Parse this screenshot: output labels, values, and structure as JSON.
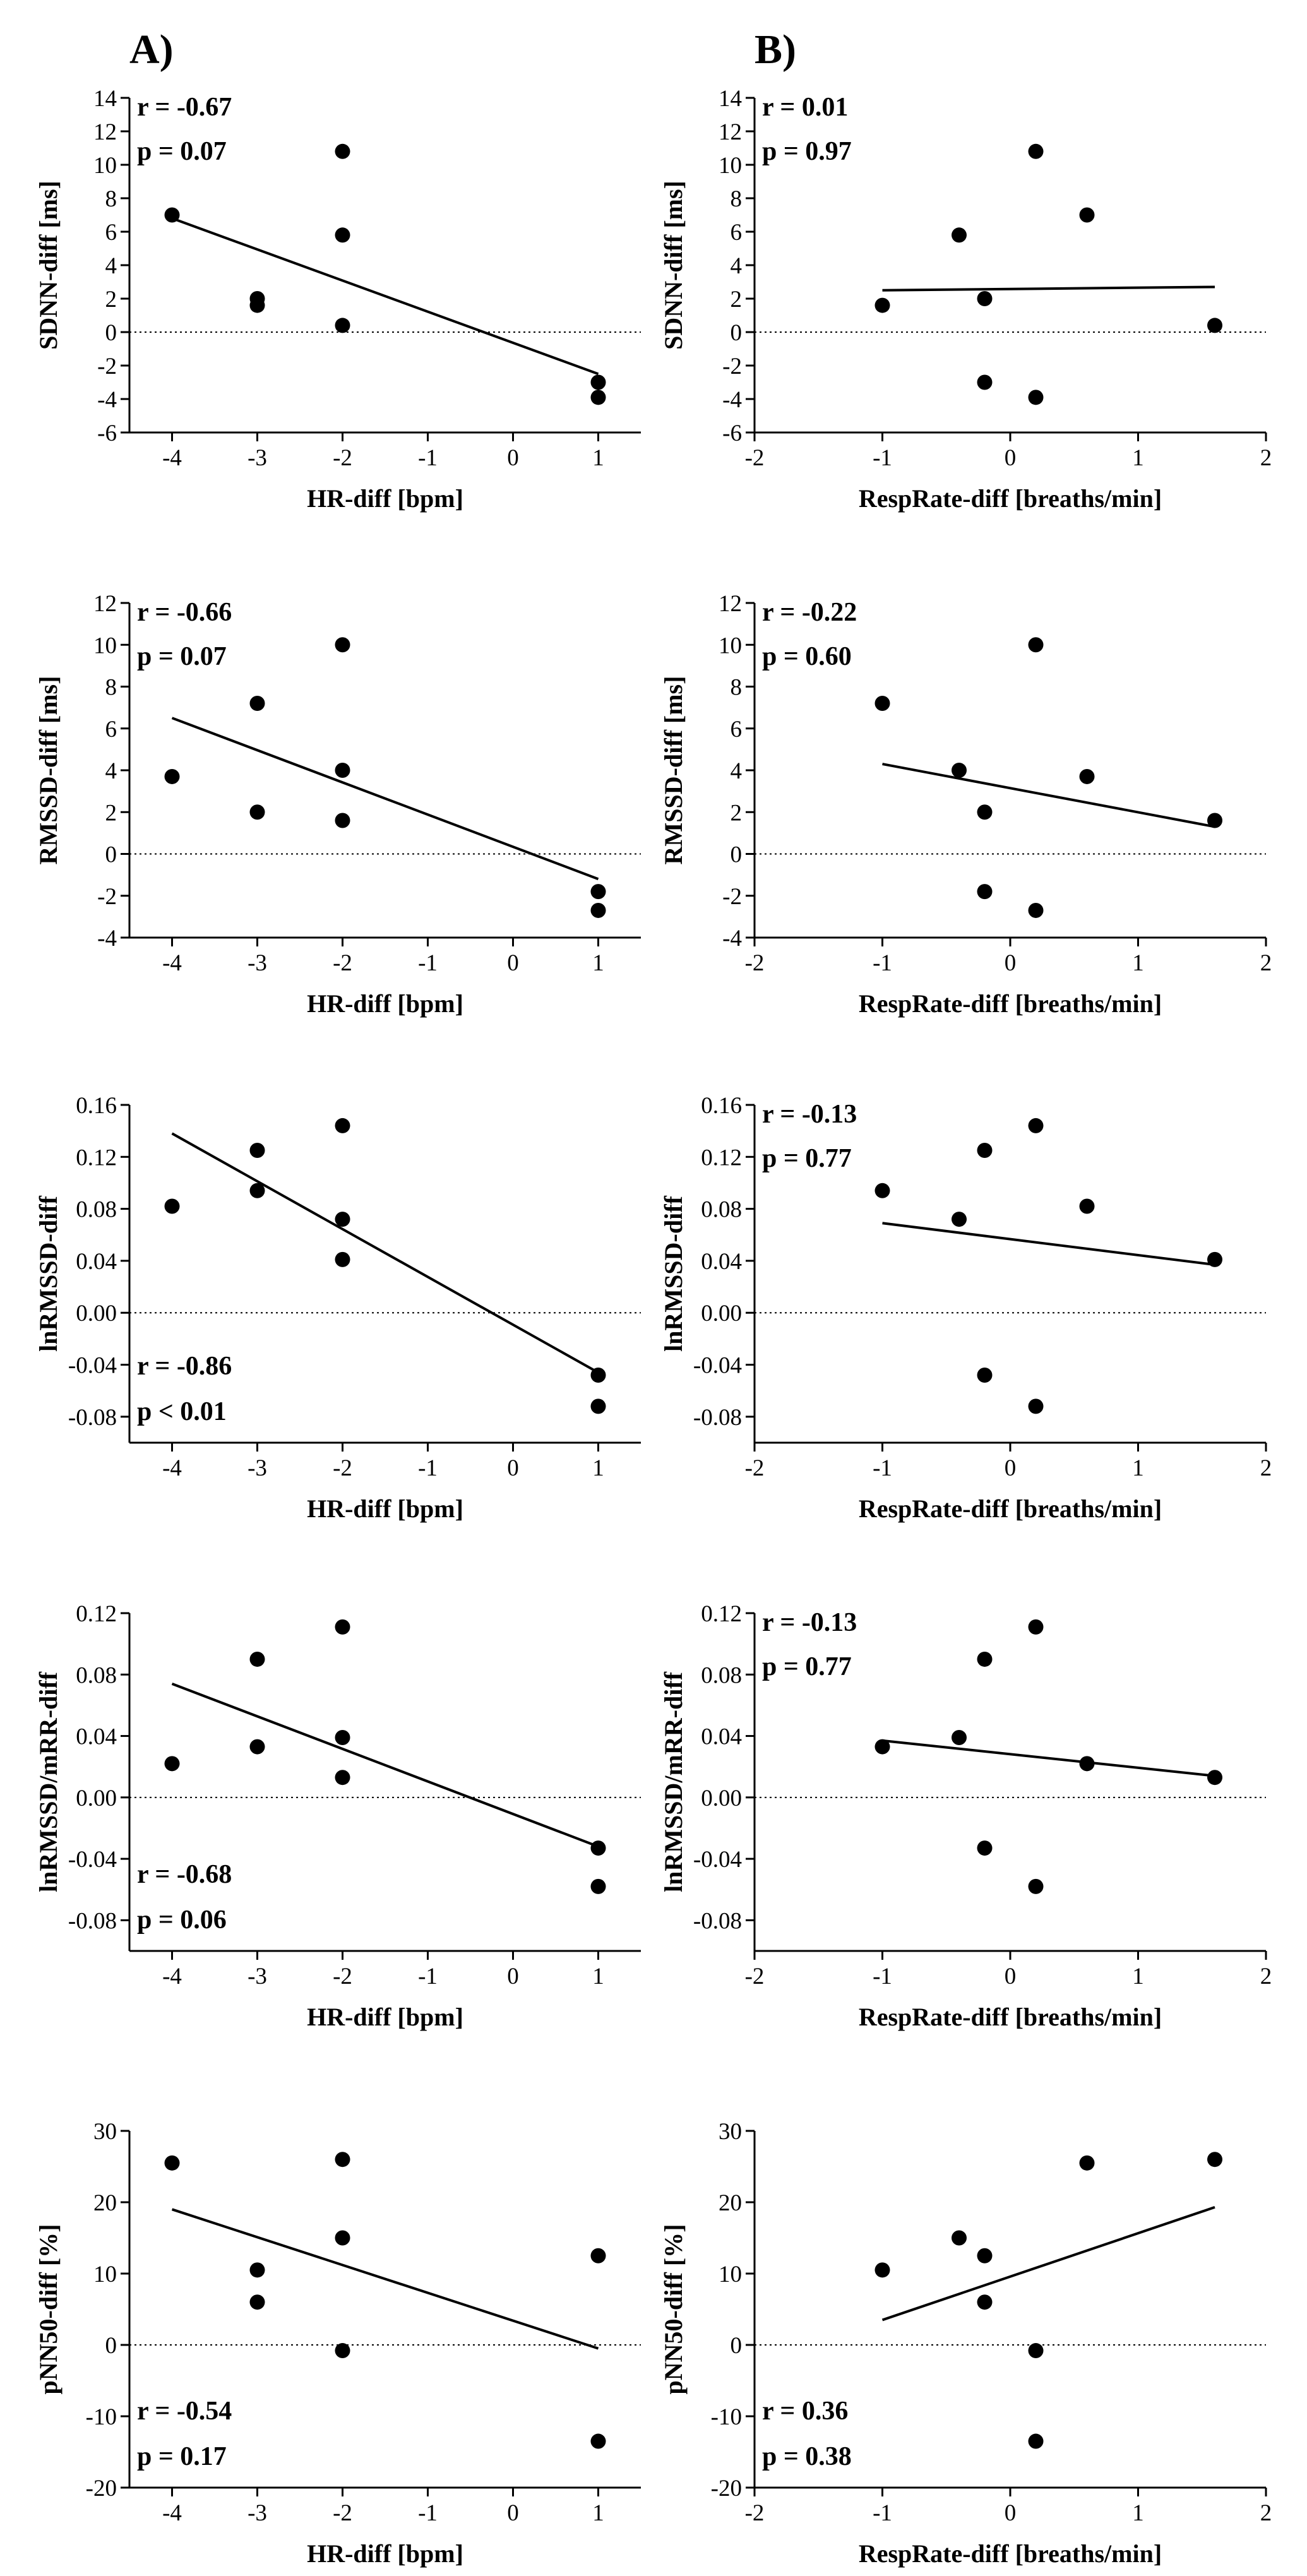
{
  "figure": {
    "panel_labels": [
      "A)",
      "B)"
    ]
  },
  "chart_data": [
    {
      "type": "scatter",
      "col": 0,
      "row": 0,
      "xlabel": "HR-diff [bpm]",
      "ylabel": "SDNN-diff [ms]",
      "xlim": [
        -4.5,
        1.5
      ],
      "ylim": [
        -6,
        14
      ],
      "xticks": [
        -4,
        -3,
        -2,
        -1,
        0,
        1
      ],
      "yticks": [
        -6,
        -4,
        -2,
        0,
        2,
        4,
        6,
        8,
        10,
        12,
        14
      ],
      "y_decimals": 0,
      "points": [
        [
          -4,
          7.0
        ],
        [
          -3,
          2.0
        ],
        [
          -3,
          1.6
        ],
        [
          -2,
          10.8
        ],
        [
          -2,
          5.8
        ],
        [
          -2,
          0.4
        ],
        [
          1,
          -3.0
        ],
        [
          1,
          -3.9
        ]
      ],
      "fit": [
        [
          -4,
          6.8
        ],
        [
          1,
          -2.5
        ]
      ],
      "stats": {
        "r": "r = -0.67",
        "p": "p = 0.07",
        "position": "top-left"
      }
    },
    {
      "type": "scatter",
      "col": 1,
      "row": 0,
      "xlabel": "RespRate-diff [breaths/min]",
      "ylabel": "SDNN-diff [ms]",
      "xlim": [
        -2,
        2
      ],
      "ylim": [
        -6,
        14
      ],
      "xticks": [
        -2,
        -1,
        0,
        1,
        2
      ],
      "yticks": [
        -6,
        -4,
        -2,
        0,
        2,
        4,
        6,
        8,
        10,
        12,
        14
      ],
      "y_decimals": 0,
      "points": [
        [
          -1.0,
          1.6
        ],
        [
          -0.4,
          5.8
        ],
        [
          -0.2,
          2.0
        ],
        [
          -0.2,
          -3.0
        ],
        [
          0.2,
          10.8
        ],
        [
          0.2,
          -3.9
        ],
        [
          0.6,
          7.0
        ],
        [
          1.6,
          0.4
        ]
      ],
      "fit": [
        [
          -1,
          2.5
        ],
        [
          1.6,
          2.7
        ]
      ],
      "stats": {
        "r": "r = 0.01",
        "p": "p = 0.97",
        "position": "top-left"
      }
    },
    {
      "type": "scatter",
      "col": 0,
      "row": 1,
      "xlabel": "HR-diff [bpm]",
      "ylabel": "RMSSD-diff [ms]",
      "xlim": [
        -4.5,
        1.5
      ],
      "ylim": [
        -4,
        12
      ],
      "xticks": [
        -4,
        -3,
        -2,
        -1,
        0,
        1
      ],
      "yticks": [
        -4,
        -2,
        0,
        2,
        4,
        6,
        8,
        10,
        12
      ],
      "y_decimals": 0,
      "points": [
        [
          -4,
          3.7
        ],
        [
          -3,
          7.2
        ],
        [
          -3,
          2.0
        ],
        [
          -2,
          10.0
        ],
        [
          -2,
          4.0
        ],
        [
          -2,
          1.6
        ],
        [
          1,
          -1.8
        ],
        [
          1,
          -2.7
        ]
      ],
      "fit": [
        [
          -4,
          6.5
        ],
        [
          1,
          -1.2
        ]
      ],
      "stats": {
        "r": "r = -0.66",
        "p": "p = 0.07",
        "position": "top-left"
      }
    },
    {
      "type": "scatter",
      "col": 1,
      "row": 1,
      "xlabel": "RespRate-diff [breaths/min]",
      "ylabel": "RMSSD-diff [ms]",
      "xlim": [
        -2,
        2
      ],
      "ylim": [
        -4,
        12
      ],
      "xticks": [
        -2,
        -1,
        0,
        1,
        2
      ],
      "yticks": [
        -4,
        -2,
        0,
        2,
        4,
        6,
        8,
        10,
        12
      ],
      "y_decimals": 0,
      "points": [
        [
          -1.0,
          7.2
        ],
        [
          -0.4,
          4.0
        ],
        [
          -0.2,
          2.0
        ],
        [
          -0.2,
          -1.8
        ],
        [
          0.2,
          10.0
        ],
        [
          0.2,
          -2.7
        ],
        [
          0.6,
          3.7
        ],
        [
          1.6,
          1.6
        ]
      ],
      "fit": [
        [
          -1,
          4.3
        ],
        [
          1.6,
          1.3
        ]
      ],
      "stats": {
        "r": "r = -0.22",
        "p": "p = 0.60",
        "position": "top-left"
      }
    },
    {
      "type": "scatter",
      "col": 0,
      "row": 2,
      "xlabel": "HR-diff [bpm]",
      "ylabel": "lnRMSSD-diff",
      "xlim": [
        -4.5,
        1.5
      ],
      "ylim": [
        -0.1,
        0.16
      ],
      "xticks": [
        -4,
        -3,
        -2,
        -1,
        0,
        1
      ],
      "yticks": [
        -0.08,
        -0.04,
        0.0,
        0.04,
        0.08,
        0.12,
        0.16
      ],
      "y_decimals": 2,
      "points": [
        [
          -4,
          0.082
        ],
        [
          -3,
          0.125
        ],
        [
          -3,
          0.094
        ],
        [
          -2,
          0.144
        ],
        [
          -2,
          0.072
        ],
        [
          -2,
          0.041
        ],
        [
          1,
          -0.048
        ],
        [
          1,
          -0.072
        ]
      ],
      "fit": [
        [
          -4,
          0.138
        ],
        [
          1,
          -0.046
        ]
      ],
      "stats": {
        "r": "r = -0.86",
        "p": "p < 0.01",
        "position": "bottom-left"
      }
    },
    {
      "type": "scatter",
      "col": 1,
      "row": 2,
      "xlabel": "RespRate-diff [breaths/min]",
      "ylabel": "lnRMSSD-diff",
      "xlim": [
        -2,
        2
      ],
      "ylim": [
        -0.1,
        0.16
      ],
      "xticks": [
        -2,
        -1,
        0,
        1,
        2
      ],
      "yticks": [
        -0.08,
        -0.04,
        0.0,
        0.04,
        0.08,
        0.12,
        0.16
      ],
      "y_decimals": 2,
      "points": [
        [
          -1.0,
          0.094
        ],
        [
          -0.4,
          0.072
        ],
        [
          -0.2,
          0.125
        ],
        [
          -0.2,
          -0.048
        ],
        [
          0.2,
          0.144
        ],
        [
          0.2,
          -0.072
        ],
        [
          0.6,
          0.082
        ],
        [
          1.6,
          0.041
        ]
      ],
      "fit": [
        [
          -1,
          0.069
        ],
        [
          1.6,
          0.037
        ]
      ],
      "stats": {
        "r": "r = -0.13",
        "p": "p = 0.77",
        "position": "top-left"
      }
    },
    {
      "type": "scatter",
      "col": 0,
      "row": 3,
      "xlabel": "HR-diff [bpm]",
      "ylabel": "lnRMSSD/mRR-diff",
      "xlim": [
        -4.5,
        1.5
      ],
      "ylim": [
        -0.1,
        0.12
      ],
      "xticks": [
        -4,
        -3,
        -2,
        -1,
        0,
        1
      ],
      "yticks": [
        -0.08,
        -0.04,
        0.0,
        0.04,
        0.08,
        0.12
      ],
      "y_decimals": 2,
      "points": [
        [
          -4,
          0.022
        ],
        [
          -3,
          0.09
        ],
        [
          -3,
          0.033
        ],
        [
          -2,
          0.111
        ],
        [
          -2,
          0.039
        ],
        [
          -2,
          0.013
        ],
        [
          1,
          -0.033
        ],
        [
          1,
          -0.058
        ]
      ],
      "fit": [
        [
          -4,
          0.074
        ],
        [
          1,
          -0.032
        ]
      ],
      "stats": {
        "r": "r = -0.68",
        "p": "p = 0.06",
        "position": "bottom-left"
      }
    },
    {
      "type": "scatter",
      "col": 1,
      "row": 3,
      "xlabel": "RespRate-diff [breaths/min]",
      "ylabel": "lnRMSSD/mRR-diff",
      "xlim": [
        -2,
        2
      ],
      "ylim": [
        -0.1,
        0.12
      ],
      "xticks": [
        -2,
        -1,
        0,
        1,
        2
      ],
      "yticks": [
        -0.08,
        -0.04,
        0.0,
        0.04,
        0.08,
        0.12
      ],
      "y_decimals": 2,
      "points": [
        [
          -1.0,
          0.033
        ],
        [
          -0.4,
          0.039
        ],
        [
          -0.2,
          0.09
        ],
        [
          -0.2,
          -0.033
        ],
        [
          0.2,
          0.111
        ],
        [
          0.2,
          -0.058
        ],
        [
          0.6,
          0.022
        ],
        [
          1.6,
          0.013
        ]
      ],
      "fit": [
        [
          -1,
          0.037
        ],
        [
          1.6,
          0.014
        ]
      ],
      "stats": {
        "r": "r = -0.13",
        "p": "p = 0.77",
        "position": "top-left"
      }
    },
    {
      "type": "scatter",
      "col": 0,
      "row": 4,
      "xlabel": "HR-diff [bpm]",
      "ylabel": "pNN50-diff [%]",
      "xlim": [
        -4.5,
        1.5
      ],
      "ylim": [
        -20,
        30
      ],
      "xticks": [
        -4,
        -3,
        -2,
        -1,
        0,
        1
      ],
      "yticks": [
        -20,
        -10,
        0,
        10,
        20,
        30
      ],
      "y_decimals": 0,
      "points": [
        [
          -4,
          25.5
        ],
        [
          -3,
          10.5
        ],
        [
          -3,
          6.0
        ],
        [
          -2,
          26.0
        ],
        [
          -2,
          15.0
        ],
        [
          -2,
          -0.8
        ],
        [
          1,
          12.5
        ],
        [
          1,
          -13.5
        ]
      ],
      "fit": [
        [
          -4,
          19.0
        ],
        [
          1,
          -0.5
        ]
      ],
      "stats": {
        "r": "r = -0.54",
        "p": "p = 0.17",
        "position": "bottom-left"
      }
    },
    {
      "type": "scatter",
      "col": 1,
      "row": 4,
      "xlabel": "RespRate-diff [breaths/min]",
      "ylabel": "pNN50-diff [%]",
      "xlim": [
        -2,
        2
      ],
      "ylim": [
        -20,
        30
      ],
      "xticks": [
        -2,
        -1,
        0,
        1,
        2
      ],
      "yticks": [
        -20,
        -10,
        0,
        10,
        20,
        30
      ],
      "y_decimals": 0,
      "points": [
        [
          -1.0,
          10.5
        ],
        [
          -0.4,
          15.0
        ],
        [
          -0.2,
          12.5
        ],
        [
          -0.2,
          6.0
        ],
        [
          0.2,
          -0.8
        ],
        [
          0.2,
          -13.5
        ],
        [
          0.6,
          25.5
        ],
        [
          1.6,
          26.0
        ]
      ],
      "fit": [
        [
          -1,
          3.5
        ],
        [
          1.6,
          19.3
        ]
      ],
      "stats": {
        "r": "r = 0.36",
        "p": "p = 0.38",
        "position": "bottom-left"
      }
    }
  ]
}
